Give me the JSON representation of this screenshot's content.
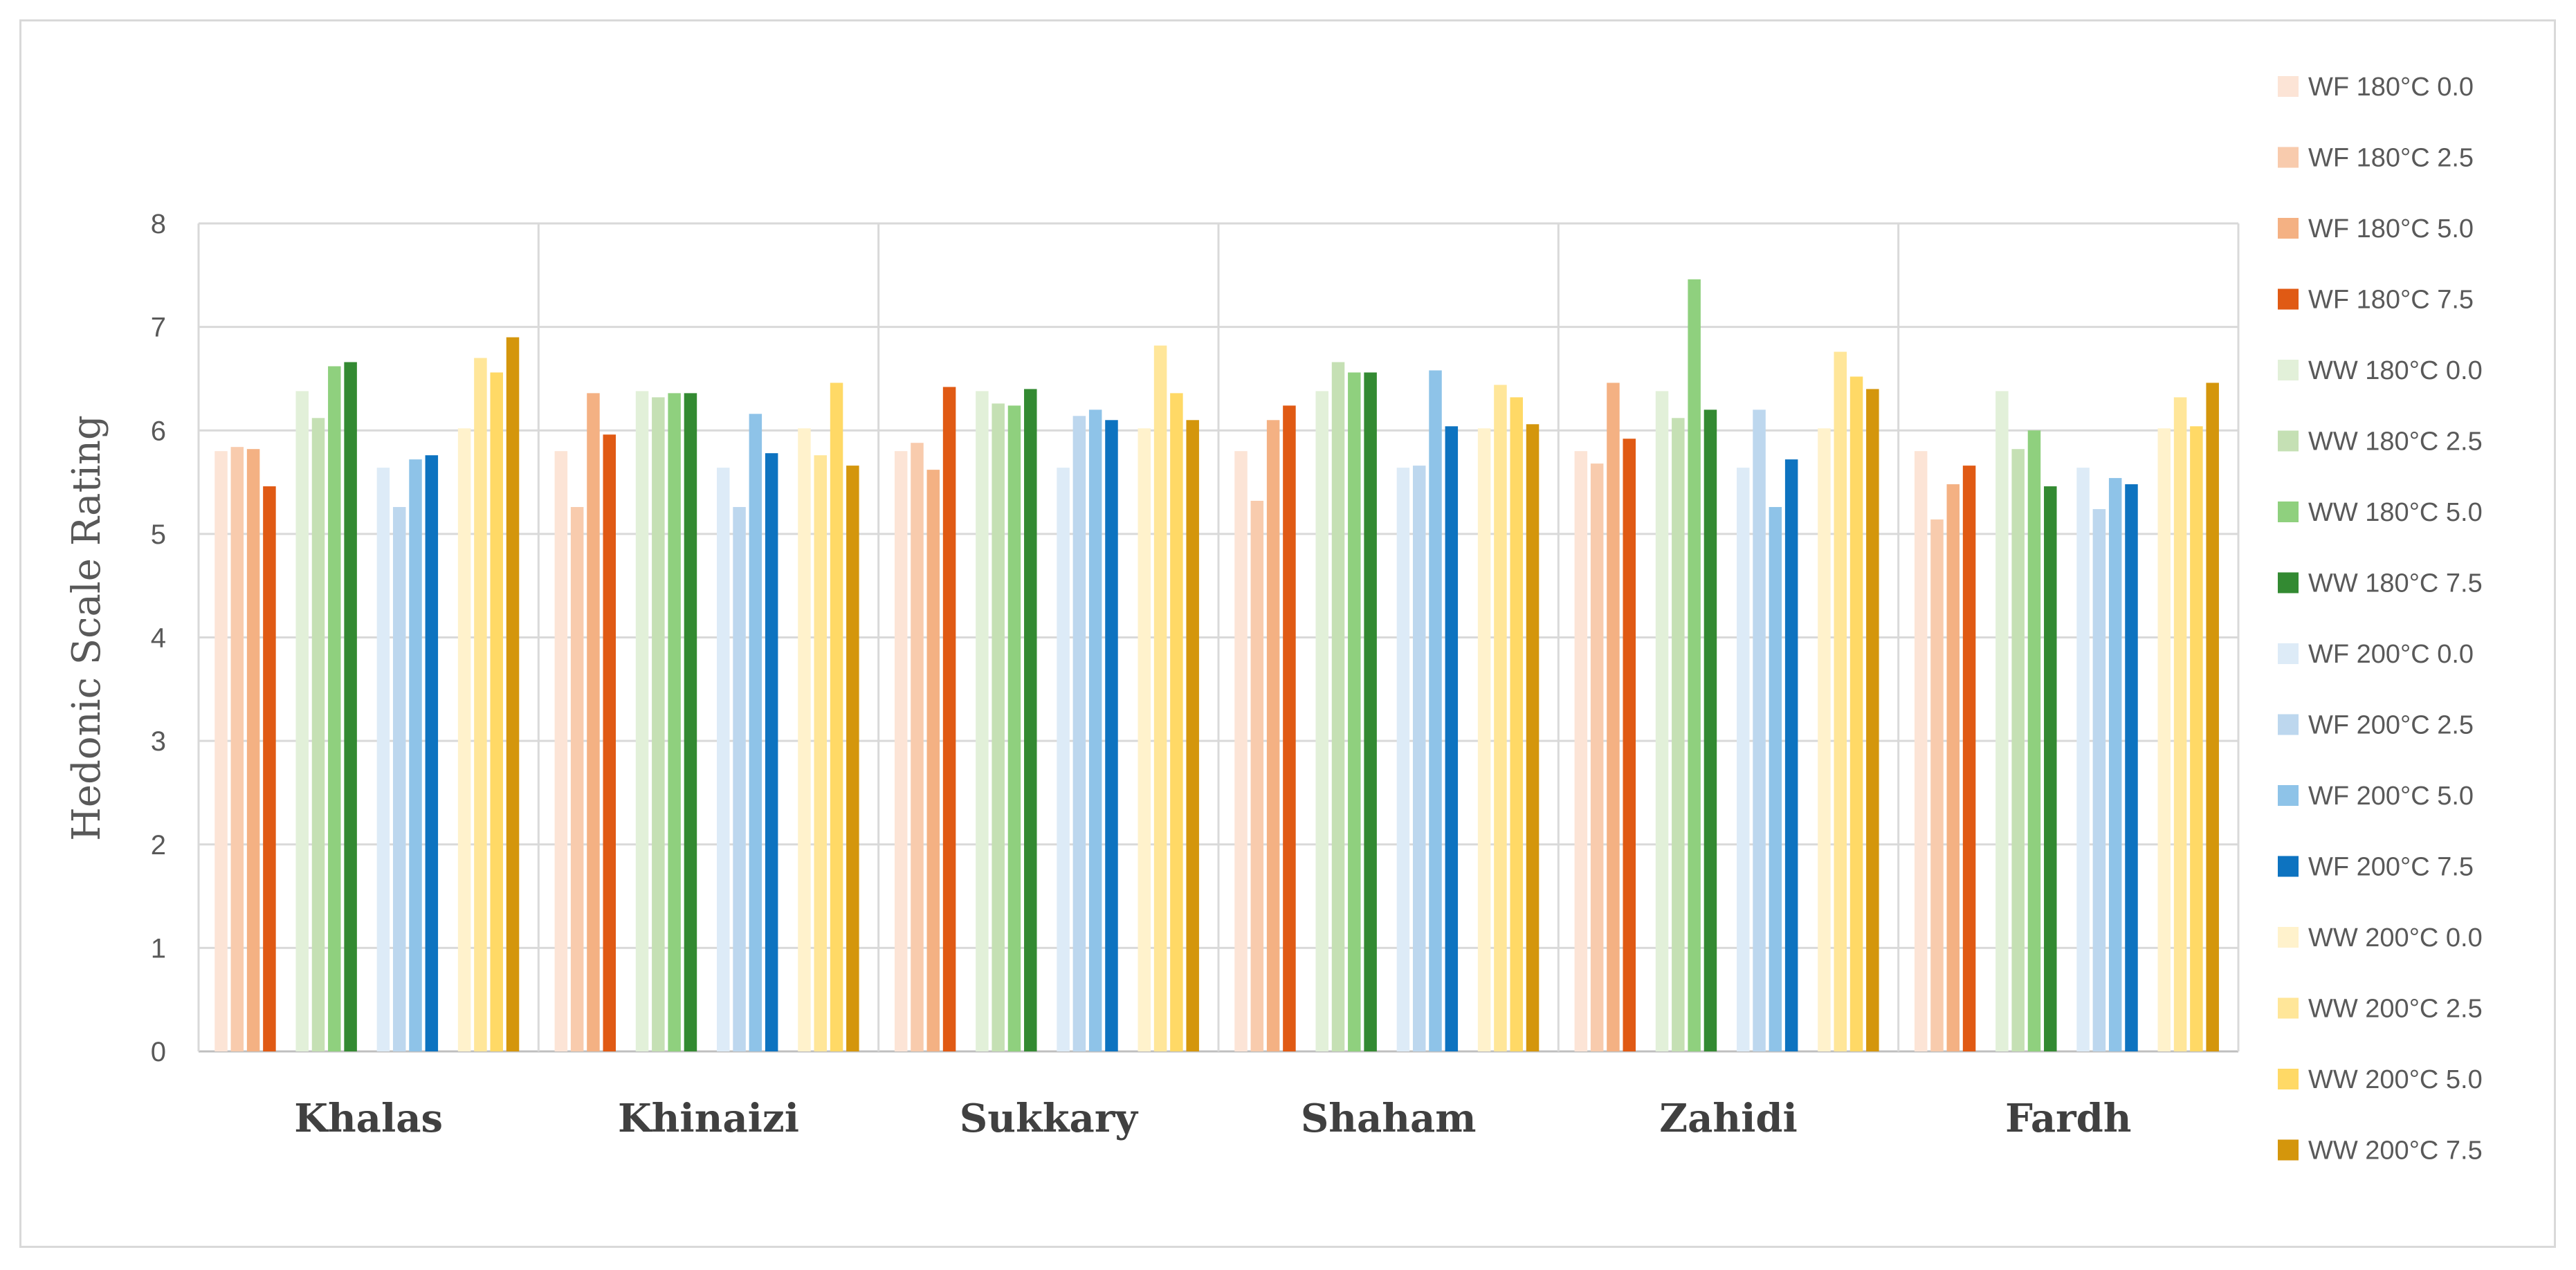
{
  "chart_data": {
    "type": "bar",
    "title": "",
    "ylabel": "Hedonic Scale Rating",
    "xlabel": "",
    "ylim": [
      0,
      8
    ],
    "yticks": [
      0,
      1,
      2,
      3,
      4,
      5,
      6,
      7,
      8
    ],
    "grid": true,
    "legend_position": "right",
    "categories": [
      "Khalas",
      "Khinaizi",
      "Sukkary",
      "Shaham",
      "Zahidi",
      "Fardh"
    ],
    "series": [
      {
        "name": "WF 180°C 0.0",
        "color": "#fce4d6",
        "values": [
          5.8,
          5.8,
          5.8,
          5.8,
          5.8,
          5.8
        ]
      },
      {
        "name": "WF 180°C 2.5",
        "color": "#f8cbad",
        "values": [
          5.84,
          5.26,
          5.88,
          5.32,
          5.68,
          5.14
        ]
      },
      {
        "name": "WF 180°C 5.0",
        "color": "#f4b183",
        "values": [
          5.82,
          6.36,
          5.62,
          6.1,
          6.46,
          5.48
        ]
      },
      {
        "name": "WF 180°C 7.5",
        "color": "#e05a14",
        "values": [
          5.46,
          5.96,
          6.42,
          6.24,
          5.92,
          5.66
        ]
      },
      {
        "name": "WW 180°C 0.0",
        "color": "#e2f0d9",
        "values": [
          6.38,
          6.38,
          6.38,
          6.38,
          6.38,
          6.38
        ]
      },
      {
        "name": "WW 180°C 2.5",
        "color": "#c5e0b4",
        "values": [
          6.12,
          6.32,
          6.26,
          6.66,
          6.12,
          5.82
        ]
      },
      {
        "name": "WW 180°C 5.0",
        "color": "#8fd07e",
        "values": [
          6.62,
          6.36,
          6.24,
          6.56,
          7.46,
          6.0
        ]
      },
      {
        "name": "WW 180°C 7.5",
        "color": "#338a32",
        "values": [
          6.66,
          6.36,
          6.4,
          6.56,
          6.2,
          5.46
        ]
      },
      {
        "name": "WF 200°C 0.0",
        "color": "#ddebf7",
        "values": [
          5.64,
          5.64,
          5.64,
          5.64,
          5.64,
          5.64
        ]
      },
      {
        "name": "WF 200°C 2.5",
        "color": "#bdd7ee",
        "values": [
          5.26,
          5.26,
          6.14,
          5.66,
          6.2,
          5.24
        ]
      },
      {
        "name": "WF 200°C 5.0",
        "color": "#8ec3e8",
        "values": [
          5.72,
          6.16,
          6.2,
          6.58,
          5.26,
          5.54
        ]
      },
      {
        "name": "WF 200°C 7.5",
        "color": "#0d73c0",
        "values": [
          5.76,
          5.78,
          6.1,
          6.04,
          5.72,
          5.48
        ]
      },
      {
        "name": "WW 200°C 0.0",
        "color": "#fff2cc",
        "values": [
          6.02,
          6.02,
          6.02,
          6.02,
          6.02,
          6.02
        ]
      },
      {
        "name": "WW 200°C 2.5",
        "color": "#ffe699",
        "values": [
          6.7,
          5.76,
          6.82,
          6.44,
          6.76,
          6.32
        ]
      },
      {
        "name": "WW 200°C 5.0",
        "color": "#ffd966",
        "values": [
          6.56,
          6.46,
          6.36,
          6.32,
          6.52,
          6.04
        ]
      },
      {
        "name": "WW 200°C 7.5",
        "color": "#d4960c",
        "values": [
          6.9,
          5.66,
          6.1,
          6.06,
          6.4,
          6.46
        ]
      }
    ]
  }
}
